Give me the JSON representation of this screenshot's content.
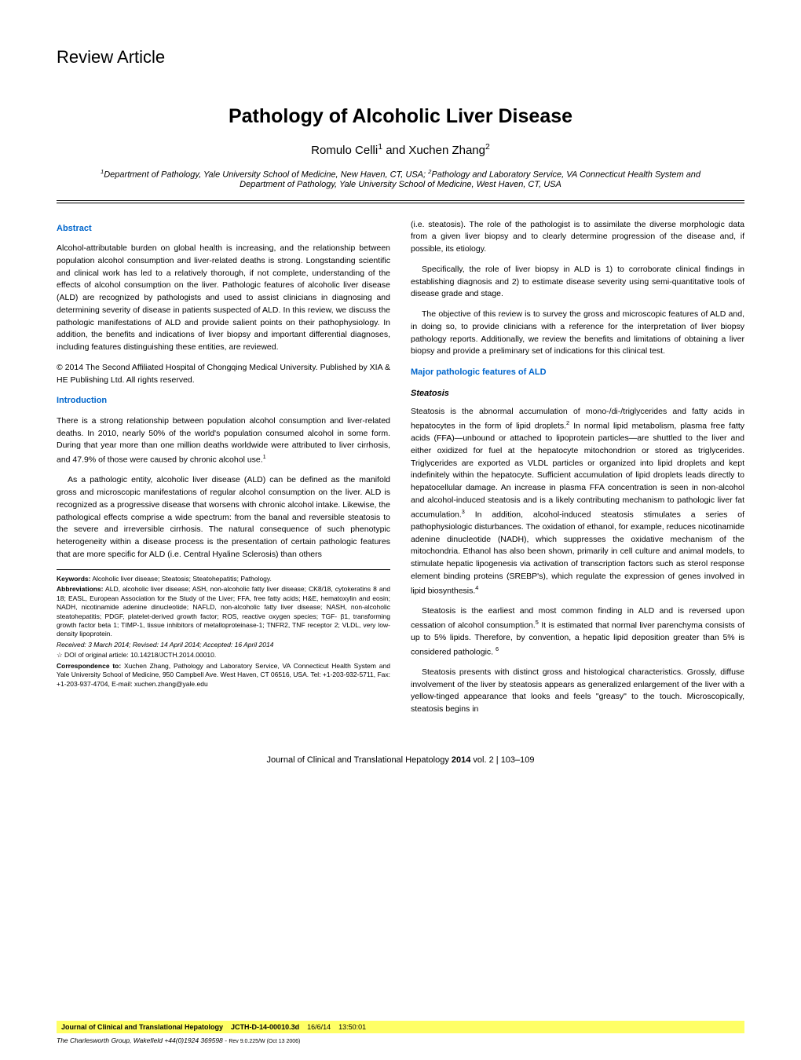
{
  "colors": {
    "heading_blue": "#0066cc",
    "highlight_yellow": "#ffff66",
    "text_black": "#000000",
    "background": "#ffffff"
  },
  "typography": {
    "body_font": "Verdana, Geneva, sans-serif",
    "title_size_pt": 18,
    "author_size_pt": 11,
    "affiliation_size_pt": 8,
    "body_size_pt": 8,
    "footnote_size_pt": 6
  },
  "article_type": "Review Article",
  "title": "Pathology of Alcoholic Liver Disease",
  "authors_html": "Romulo Celli<sup>1</sup> and Xuchen Zhang<sup>2</sup>",
  "affiliations_html": "<sup>1</sup>Department of Pathology, Yale University School of Medicine, New Haven, CT, USA; <sup>2</sup>Pathology and Laboratory Service, VA Connecticut Health System and Department of Pathology, Yale University School of Medicine, West Haven, CT, USA",
  "left_column": {
    "abstract_heading": "Abstract",
    "abstract_p1": "Alcohol-attributable burden on global health is increasing, and the relationship between population alcohol consumption and liver-related deaths is strong. Longstanding scientific and clinical work has led to a relatively thorough, if not complete, understanding of the effects of alcohol consumption on the liver. Pathologic features of alcoholic liver disease (ALD) are recognized by pathologists and used to assist clinicians in diagnosing and determining severity of disease in patients suspected of ALD. In this review, we discuss the pathologic manifestations of ALD and provide salient points on their pathophysiology. In addition, the benefits and indications of liver biopsy and important differential diagnoses, including features distinguishing these entities, are reviewed.",
    "abstract_p2": "© 2014 The Second Affiliated Hospital of Chongqing Medical University. Published by XIA & HE Publishing Ltd. All rights reserved.",
    "intro_heading": "Introduction",
    "intro_p1_html": "There is a strong relationship between population alcohol consumption and liver-related deaths. In 2010, nearly 50% of the world's population consumed alcohol in some form. During that year more than one million deaths worldwide were attributed to liver cirrhosis, and 47.9% of those were caused by chronic alcohol use.<sup>1</sup>",
    "intro_p2": "As a pathologic entity, alcoholic liver disease (ALD) can be defined as the manifold gross and microscopic manifestations of regular alcohol consumption on the liver. ALD is recognized as a progressive disease that worsens with chronic alcohol intake. Likewise, the pathological effects comprise a wide spectrum: from the banal and reversible steatosis to the severe and irreversible cirrhosis. The natural consequence of such phenotypic heterogeneity within a disease process is the presentation of certain pathologic features that are more specific for ALD (i.e. Central Hyaline Sclerosis) than others"
  },
  "right_column": {
    "p1": "(i.e. steatosis). The role of the pathologist is to assimilate the diverse morphologic data from a given liver biopsy and to clearly determine progression of the disease and, if possible, its etiology.",
    "p2": "Specifically, the role of liver biopsy in ALD is 1) to corroborate clinical findings in establishing diagnosis and 2) to estimate disease severity using semi-quantitative tools of disease grade and stage.",
    "p3": "The objective of this review is to survey the gross and microscopic features of ALD and, in doing so, to provide clinicians with a reference for the interpretation of liver biopsy pathology reports. Additionally, we review the benefits and limitations of obtaining a liver biopsy and provide a preliminary set of indications for this clinical test.",
    "major_heading": "Major pathologic features of ALD",
    "steatosis_heading": "Steatosis",
    "steatosis_p1_html": "Steatosis is the abnormal accumulation of mono-/di-/triglycerides and fatty acids in hepatocytes in the form of lipid droplets.<sup>2</sup> In normal lipid metabolism, plasma free fatty acids (FFA)—unbound or attached to lipoprotein particles—are shuttled to the liver and either oxidized for fuel at the hepatocyte mitochondrion or stored as triglycerides. Triglycerides are exported as VLDL particles or organized into lipid droplets and kept indefinitely within the hepatocyte. Sufficient accumulation of lipid droplets leads directly to hepatocellular damage. An increase in plasma FFA concentration is seen in non-alcohol and alcohol-induced steatosis and is a likely contributing mechanism to pathologic liver fat accumulation.<sup>3</sup> In addition, alcohol-induced steatosis stimulates a series of pathophysiologic disturbances. The oxidation of ethanol, for example, reduces nicotinamide adenine dinucleotide (NADH), which suppresses the oxidative mechanism of the mitochondria. Ethanol has also been shown, primarily in cell culture and animal models, to stimulate hepatic lipogenesis via activation of transcription factors such as sterol response element binding proteins (SREBP's), which regulate the expression of genes involved in lipid biosynthesis.<sup>4</sup>",
    "steatosis_p2_html": "Steatosis is the earliest and most common finding in ALD and is reversed upon cessation of alcohol consumption.<sup>5</sup> It is estimated that normal liver parenchyma consists of up to 5% lipids. Therefore, by convention, a hepatic lipid deposition greater than 5% is considered pathologic. <sup>6</sup>",
    "steatosis_p3": "Steatosis presents with distinct gross and histological characteristics. Grossly, diffuse involvement of the liver by steatosis appears as generalized enlargement of the liver with a yellow-tinged appearance that looks and feels \"greasy\" to the touch. Microscopically, steatosis begins in"
  },
  "footnotes": {
    "keywords_label": "Keywords:",
    "keywords": " Alcoholic liver disease; Steatosis; Steatohepatitis; Pathology.",
    "abbrev_label": "Abbreviations:",
    "abbrev": " ALD, alcoholic liver disease; ASH, non-alcoholic fatty liver disease; CK8/18, cytokeratins 8 and 18; EASL, European Association for the Study of the Liver; FFA, free fatty acids; H&E, hematoxylin and eosin; NADH, nicotinamide adenine dinucleotide; NAFLD, non-alcoholic fatty liver disease; NASH, non-alcoholic steatohepatitis; PDGF, platelet-derived growth factor; ROS, reactive oxygen species; TGF- β1, transforming growth factor beta 1; TIMP-1, tissue inhibitors of metalloproteinase-1; TNFR2, TNF receptor 2; VLDL, very low-density lipoprotein.",
    "received": "Received: 3 March 2014; Revised: 14 April 2014; Accepted: 16 April 2014",
    "doi": "☆ DOI of original article: 10.14218/JCTH.2014.00010.",
    "corr_label": "Correspondence to:",
    "corr": " Xuchen Zhang, Pathology and Laboratory Service, VA Connecticut Health System and Yale University School of Medicine, 950 Campbell Ave. West Haven, CT 06516, USA. Tel: +1-203-932-5711, Fax: +1-203-937-4704, E-mail: xuchen.zhang@yale.edu"
  },
  "journal_footer_html": "Journal of Clinical and Translational Hepatology <b>2014</b> vol. 2 | 103–109",
  "bottom_bar": {
    "journal_bold": "Journal of Clinical and Translational Hepatology",
    "code": "JCTH-D-14-00010.3d",
    "date": "16/6/14",
    "time": "13:50:01"
  },
  "bottom_sub": {
    "group": "The Charlesworth Group",
    "location": ", Wakefield +44(0)1924 369598 - ",
    "rev": "Rev 9.0.225/W (Oct 13 2006)"
  }
}
